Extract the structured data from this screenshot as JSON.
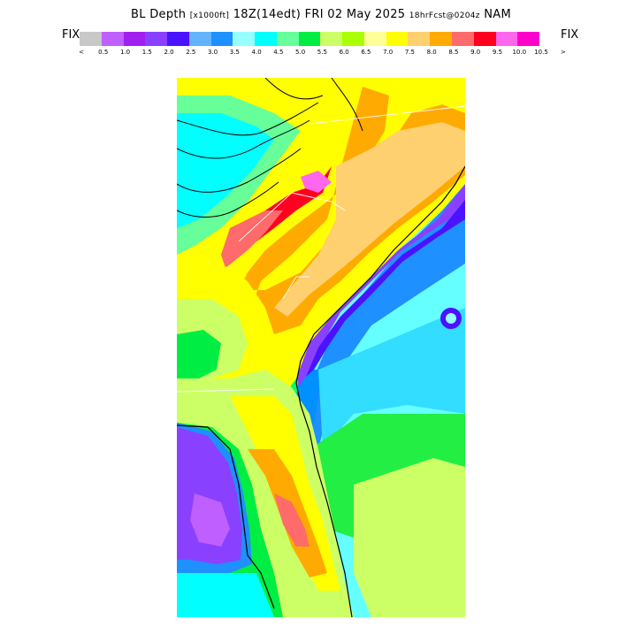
{
  "title": {
    "product": "BL Depth",
    "units": "[x1000ft]",
    "valid": "18Z(14edt) FRI 02 May 2025",
    "forecast": "18hrFcst@0204z",
    "model": "NAM"
  },
  "colorbar": {
    "left_label": "FIX",
    "right_label": "FIX",
    "colors": [
      "#c8c8c8",
      "#bf5fff",
      "#a020f0",
      "#8a40ff",
      "#4b12ff",
      "#63b4ff",
      "#1e90ff",
      "#96ffff",
      "#00ffff",
      "#66ff99",
      "#00ee44",
      "#ccff66",
      "#aaff00",
      "#ffff99",
      "#ffff00",
      "#ffd070",
      "#ffaa00",
      "#ff6a6a",
      "#ff0020",
      "#ff66ee",
      "#ff00cc"
    ],
    "tick_labels": [
      "<",
      "0.5",
      "1.0",
      "1.5",
      "2.0",
      "2.5",
      "3.0",
      "3.5",
      "4.0",
      "4.5",
      "5.0",
      "5.5",
      "6.0",
      "6.5",
      "7.0",
      "7.5",
      "8.0",
      "8.5",
      "9.0",
      "9.5",
      "10.0",
      "10.5",
      ">"
    ]
  }
}
